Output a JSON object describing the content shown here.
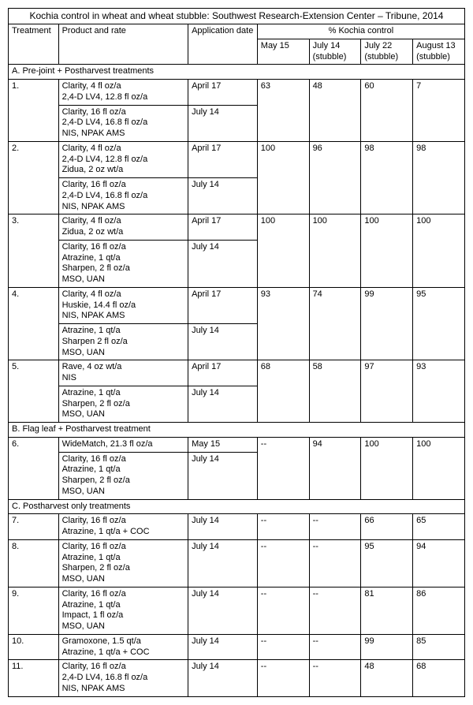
{
  "title": "Kochia control in wheat and wheat stubble: Southwest Research-Extension Center – Tribune, 2014",
  "groupHeader": "% Kochia control",
  "cols": {
    "treatment": "Treatment",
    "product": "Product and rate",
    "date": "Application date",
    "d1": "May 15",
    "d2": "July 14\n(stubble)",
    "d3": "July 22\n(stubble)",
    "d4": "August 13\n(stubble)"
  },
  "secA": "A. Pre-joint + Postharvest treatments",
  "secB": "B. Flag leaf + Postharvest treatment",
  "secC": "C. Postharvest only treatments",
  "rows": {
    "r1a": {
      "t": "1.",
      "p": "Clarity, 4 fl oz/a\n2,4-D LV4, 12.8 fl oz/a",
      "d": "April 17",
      "v": [
        "63",
        "48",
        "60",
        "7"
      ]
    },
    "r1b": {
      "p": "Clarity, 16 fl oz/a\n2,4-D LV4, 16.8 fl oz/a\nNIS, NPAK AMS",
      "d": "July 14"
    },
    "r2a": {
      "t": "2.",
      "p": "Clarity, 4 fl oz/a\n2,4-D LV4, 12.8 fl oz/a\nZidua, 2 oz wt/a",
      "d": "April 17",
      "v": [
        "100",
        "96",
        "98",
        "98"
      ]
    },
    "r2b": {
      "p": "Clarity, 16 fl oz/a\n2,4-D LV4, 16.8 fl oz/a\nNIS, NPAK AMS",
      "d": "July 14"
    },
    "r3a": {
      "t": "3.",
      "p": "Clarity, 4 fl oz/a\nZidua, 2 oz wt/a",
      "d": "April 17",
      "v": [
        "100",
        "100",
        "100",
        "100"
      ]
    },
    "r3b": {
      "p": "Clarity, 16 fl oz/a\nAtrazine, 1 qt/a\nSharpen, 2 fl oz/a\nMSO, UAN",
      "d": "July 14"
    },
    "r4a": {
      "t": "4.",
      "p": "Clarity, 4 fl oz/a\nHuskie, 14.4 fl oz/a\nNIS, NPAK AMS",
      "d": "April 17",
      "v": [
        "93",
        "74",
        "99",
        "95"
      ]
    },
    "r4b": {
      "p": "Atrazine, 1 qt/a\nSharpen 2 fl oz/a\nMSO, UAN",
      "d": "July 14"
    },
    "r5a": {
      "t": "5.",
      "p": "Rave, 4 oz wt/a\nNIS",
      "d": "April 17",
      "v": [
        "68",
        "58",
        "97",
        "93"
      ]
    },
    "r5b": {
      "p": "Atrazine, 1 qt/a\nSharpen, 2 fl oz/a\nMSO, UAN",
      "d": "July 14"
    },
    "r6a": {
      "t": "6.",
      "p": "WideMatch, 21.3 fl oz/a",
      "d": "May 15",
      "v": [
        "--",
        "94",
        "100",
        "100"
      ]
    },
    "r6b": {
      "p": "Clarity, 16 fl oz/a\nAtrazine, 1 qt/a\nSharpen, 2 fl oz/a\nMSO, UAN",
      "d": "July 14"
    },
    "r7": {
      "t": "7.",
      "p": "Clarity, 16 fl oz/a\nAtrazine, 1 qt/a + COC",
      "d": "July 14",
      "v": [
        "--",
        "--",
        "66",
        "65"
      ]
    },
    "r8": {
      "t": "8.",
      "p": "Clarity, 16 fl oz/a\nAtrazine, 1 qt/a\nSharpen, 2 fl oz/a\nMSO, UAN",
      "d": "July 14",
      "v": [
        "--",
        "--",
        "95",
        "94"
      ]
    },
    "r9": {
      "t": "9.",
      "p": "Clarity, 16 fl oz/a\nAtrazine, 1 qt/a\nImpact, 1 fl oz/a\nMSO, UAN",
      "d": "July 14",
      "v": [
        "--",
        "--",
        "81",
        "86"
      ]
    },
    "r10": {
      "t": "10.",
      "p": "Gramoxone, 1.5 qt/a\nAtrazine, 1 qt/a + COC",
      "d": "July 14",
      "v": [
        "--",
        "--",
        "99",
        "85"
      ]
    },
    "r11": {
      "t": "11.",
      "p": "Clarity, 16 fl oz/a\n2,4-D LV4, 16.8 fl oz/a\nNIS, NPAK AMS",
      "d": "July 14",
      "v": [
        "--",
        "--",
        "48",
        "68"
      ]
    }
  }
}
